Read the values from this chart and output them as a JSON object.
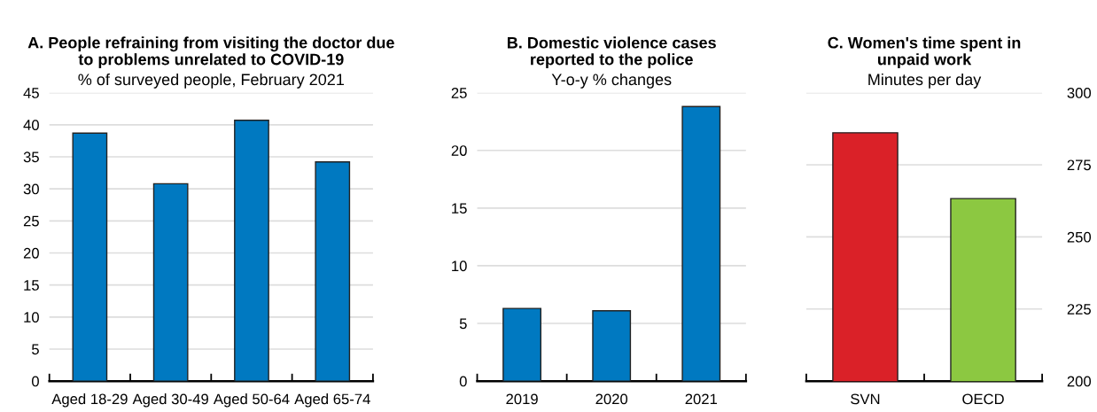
{
  "chart_data": [
    {
      "type": "bar",
      "title": "A. People refraining from visiting the doctor due\nto problems unrelated to COVID-19",
      "subtitle": "% of surveyed people, February 2021",
      "categories": [
        "Aged 18-29",
        "Aged 30-49",
        "Aged 50-64",
        "Aged 65-74"
      ],
      "values": [
        38.7,
        30.8,
        40.7,
        34.2
      ],
      "color": "#0079c1",
      "ylim": [
        0,
        45
      ],
      "yticks": [
        0,
        5,
        10,
        15,
        20,
        25,
        30,
        35,
        40,
        45
      ],
      "grid": "y"
    },
    {
      "type": "bar",
      "title": "B. Domestic violence cases\nreported to the police",
      "subtitle": "Y-o-y % changes",
      "categories": [
        "2019",
        "2020",
        "2021"
      ],
      "values": [
        6.3,
        6.1,
        23.8
      ],
      "color": "#0079c1",
      "ylim": [
        0,
        25
      ],
      "yticks": [
        0,
        5,
        10,
        15,
        20,
        25
      ],
      "grid": "y"
    },
    {
      "type": "bar",
      "title": "C. Women's time spent in\nunpaid work",
      "subtitle": "Minutes per day",
      "categories": [
        "SVN",
        "OECD"
      ],
      "series": [
        {
          "values": [
            286.1,
            263.3
          ],
          "colors": [
            "#da2128",
            "#8cc841"
          ],
          "axis": "y2"
        }
      ],
      "y2lim": [
        200,
        300
      ],
      "y2ticks": [
        200,
        225,
        250,
        275,
        300
      ],
      "grid": "y"
    }
  ]
}
